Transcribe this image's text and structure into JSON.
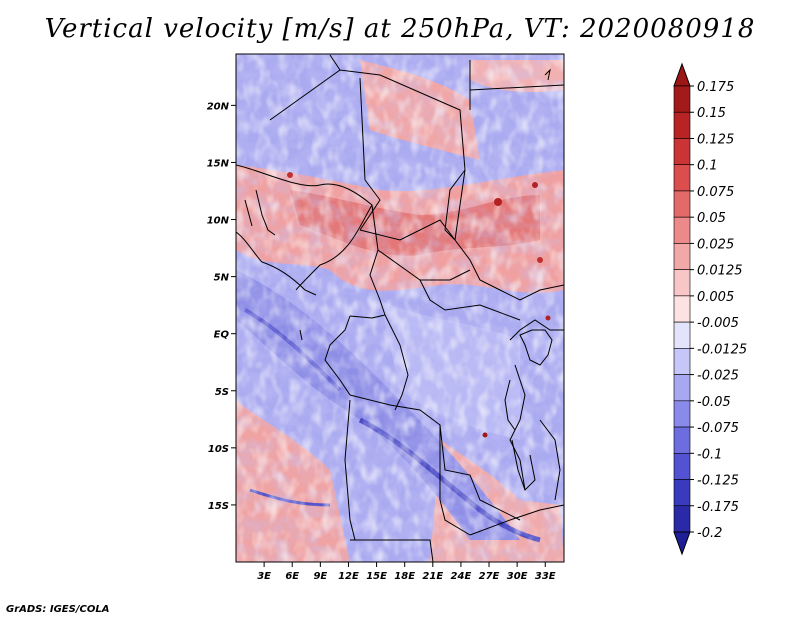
{
  "title": "Vertical velocity [m/s] at 250hPa, VT: 2020080918",
  "credit": "GrADS: IGES/COLA",
  "map": {
    "lon_range": [
      0,
      35
    ],
    "lat_range": [
      -20,
      24.5
    ],
    "lat_ticks": [
      {
        "value": 20,
        "label": "20N"
      },
      {
        "value": 15,
        "label": "15N"
      },
      {
        "value": 10,
        "label": "10N"
      },
      {
        "value": 5,
        "label": "5N"
      },
      {
        "value": 0,
        "label": "EQ"
      },
      {
        "value": -5,
        "label": "5S"
      },
      {
        "value": -10,
        "label": "10S"
      },
      {
        "value": -15,
        "label": "15S"
      }
    ],
    "lon_ticks": [
      {
        "value": 3,
        "label": "3E"
      },
      {
        "value": 6,
        "label": "6E"
      },
      {
        "value": 9,
        "label": "9E"
      },
      {
        "value": 12,
        "label": "12E"
      },
      {
        "value": 15,
        "label": "15E"
      },
      {
        "value": 18,
        "label": "18E"
      },
      {
        "value": 21,
        "label": "21E"
      },
      {
        "value": 24,
        "label": "24E"
      },
      {
        "value": 27,
        "label": "27E"
      },
      {
        "value": 30,
        "label": "30E"
      },
      {
        "value": 33,
        "label": "33E"
      }
    ]
  },
  "colorbar": {
    "levels": [
      {
        "label": "0.175",
        "color": "#a31a1a"
      },
      {
        "label": "0.15",
        "color": "#b82323"
      },
      {
        "label": "0.125",
        "color": "#cb3434"
      },
      {
        "label": "0.1",
        "color": "#dc4d4d"
      },
      {
        "label": "0.075",
        "color": "#e46a6a"
      },
      {
        "label": "0.05",
        "color": "#ec8989"
      },
      {
        "label": "0.025",
        "color": "#f3a8a8"
      },
      {
        "label": "0.0125",
        "color": "#f8c6c6"
      },
      {
        "label": "0.005",
        "color": "#fce2e2"
      },
      {
        "label": "-0.005",
        "color": "#ffffff"
      },
      {
        "label": "-0.0125",
        "color": "#e3e3fc"
      },
      {
        "label": "-0.025",
        "color": "#c6c6f8"
      },
      {
        "label": "-0.05",
        "color": "#a8a8f2"
      },
      {
        "label": "-0.075",
        "color": "#8a8aea"
      },
      {
        "label": "-0.1",
        "color": "#6d6ddf"
      },
      {
        "label": "-0.125",
        "color": "#5252d2"
      },
      {
        "label": "-0.175",
        "color": "#3a3abf"
      },
      {
        "label": "-0.2",
        "color": "#2a2aa8"
      }
    ],
    "top_color": "#9e1515",
    "bottom_color": "#1e1e96"
  }
}
